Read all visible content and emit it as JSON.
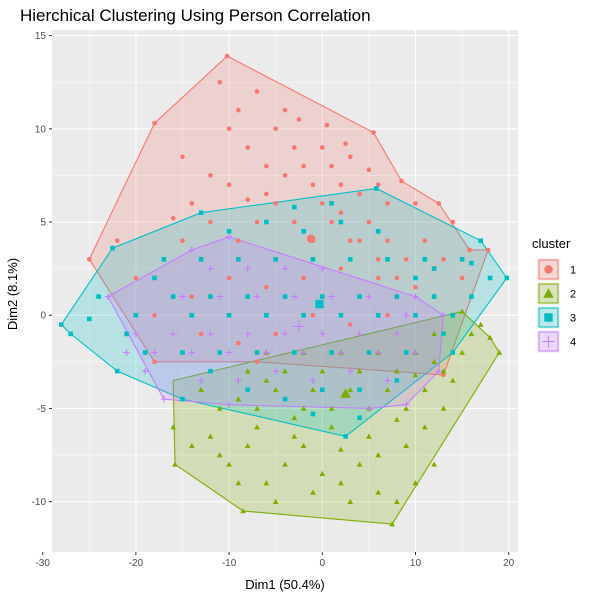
{
  "chart_data": {
    "type": "scatter",
    "title": "Hierchical Clustering Using Person Correlation",
    "xlabel": "Dim1 (50.4%)",
    "ylabel": "Dim2 (8.1%)",
    "xlim": [
      -29,
      21
    ],
    "ylim": [
      -12.7,
      15.3
    ],
    "xticks": [
      -30,
      -20,
      -10,
      0,
      10,
      20
    ],
    "yticks": [
      -10,
      -5,
      0,
      5,
      10,
      15
    ],
    "grid": true,
    "legend": {
      "title": "cluster",
      "position": "right"
    },
    "series": [
      {
        "name": "1",
        "shape": "circle",
        "color": "#F8766D",
        "hull": [
          [
            -10.2,
            13.9
          ],
          [
            5.5,
            9.8
          ],
          [
            8.5,
            7.2
          ],
          [
            12.5,
            6
          ],
          [
            15.8,
            3.5
          ],
          [
            17.8,
            3.5
          ],
          [
            13,
            -3.2
          ],
          [
            -7,
            -2.5
          ],
          [
            -18,
            -2.5
          ],
          [
            -25,
            3
          ],
          [
            -18,
            10.3
          ]
        ],
        "centroid": [
          -1.2,
          4.1
        ],
        "points": [
          [
            -10.2,
            13.9
          ],
          [
            -18,
            10.3
          ],
          [
            -15,
            8.5
          ],
          [
            -12,
            7.5
          ],
          [
            -14,
            6
          ],
          [
            -10,
            7
          ],
          [
            -8,
            9
          ],
          [
            -6,
            8
          ],
          [
            -9,
            11
          ],
          [
            -7,
            12
          ],
          [
            -5,
            10
          ],
          [
            -3,
            9
          ],
          [
            -2,
            8
          ],
          [
            -1,
            7
          ],
          [
            0,
            9
          ],
          [
            1,
            8
          ],
          [
            2,
            7
          ],
          [
            3,
            8.5
          ],
          [
            4,
            6.5
          ],
          [
            5.5,
            9.8
          ],
          [
            6,
            7
          ],
          [
            7,
            6
          ],
          [
            8.5,
            7.2
          ],
          [
            10,
            6
          ],
          [
            12.5,
            6
          ],
          [
            14,
            5
          ],
          [
            15.8,
            3.5
          ],
          [
            17.8,
            3.5
          ],
          [
            -22,
            4
          ],
          [
            -25,
            3
          ],
          [
            -20,
            2
          ],
          [
            -17,
            3
          ],
          [
            -15,
            4
          ],
          [
            -12,
            5
          ],
          [
            -9,
            4
          ],
          [
            -7,
            5
          ],
          [
            -5,
            6
          ],
          [
            -3,
            5
          ],
          [
            -1,
            4
          ],
          [
            1,
            5
          ],
          [
            3,
            4
          ],
          [
            5,
            5
          ],
          [
            7,
            4
          ],
          [
            9,
            3
          ],
          [
            11,
            4
          ],
          [
            13,
            3
          ],
          [
            15,
            2
          ],
          [
            -10,
            10
          ],
          [
            -4,
            11
          ],
          [
            -6,
            6.5
          ],
          [
            0,
            6
          ],
          [
            2,
            5.5
          ],
          [
            4,
            4
          ],
          [
            6,
            3
          ],
          [
            8,
            2
          ],
          [
            10,
            1.5
          ],
          [
            12,
            1
          ],
          [
            -18,
            0
          ],
          [
            -14,
            1
          ],
          [
            -10,
            2
          ],
          [
            -6,
            1.5
          ],
          [
            -2,
            2
          ],
          [
            2,
            2.5
          ],
          [
            6,
            2
          ],
          [
            -13,
            -1
          ],
          [
            -9,
            -1.5
          ],
          [
            -5,
            -1
          ],
          [
            -1,
            0
          ],
          [
            3,
            -0.5
          ],
          [
            7,
            0
          ],
          [
            -7,
            -2.5
          ],
          [
            -18,
            -2.5
          ],
          [
            13,
            -3.2
          ],
          [
            -11,
            12.5
          ],
          [
            -8,
            6.2
          ],
          [
            -16,
            5.2
          ],
          [
            -4,
            7.5
          ],
          [
            0.5,
            10.2
          ],
          [
            2.5,
            9.2
          ],
          [
            -2.5,
            10.5
          ],
          [
            5,
            7.8
          ]
        ]
      },
      {
        "name": "2",
        "shape": "triangle",
        "color": "#7CAE00",
        "hull": [
          [
            -16,
            -3.5
          ],
          [
            15,
            0.2
          ],
          [
            18,
            -1.2
          ],
          [
            19,
            -2
          ],
          [
            7.5,
            -11.2
          ],
          [
            -8.5,
            -10.5
          ],
          [
            -15.8,
            -8
          ]
        ],
        "centroid": [
          2.5,
          -4.2
        ],
        "points": [
          [
            7.5,
            -11.2
          ],
          [
            -8.5,
            -10.5
          ],
          [
            -15.8,
            -8
          ],
          [
            -16,
            -6
          ],
          [
            -14,
            -7
          ],
          [
            -12,
            -6.5
          ],
          [
            -10,
            -8
          ],
          [
            -8,
            -7
          ],
          [
            -6,
            -9
          ],
          [
            -4,
            -8
          ],
          [
            -2,
            -7
          ],
          [
            0,
            -8.5
          ],
          [
            2,
            -9
          ],
          [
            4,
            -8
          ],
          [
            6,
            -9.5
          ],
          [
            8,
            -10
          ],
          [
            10,
            -9
          ],
          [
            12,
            -8
          ],
          [
            -13,
            -4
          ],
          [
            -11,
            -5
          ],
          [
            -9,
            -4.5
          ],
          [
            -7,
            -5
          ],
          [
            -5,
            -4
          ],
          [
            -3,
            -5.5
          ],
          [
            -1,
            -4
          ],
          [
            1,
            -5
          ],
          [
            3,
            -4
          ],
          [
            5,
            -5
          ],
          [
            7,
            -4
          ],
          [
            9,
            -5
          ],
          [
            11,
            -4
          ],
          [
            13,
            -3
          ],
          [
            15,
            -2
          ],
          [
            18,
            -1.2
          ],
          [
            19,
            -2
          ],
          [
            16,
            -1
          ],
          [
            14,
            0
          ],
          [
            12,
            -1
          ],
          [
            10,
            -2
          ],
          [
            8,
            -3
          ],
          [
            6,
            -2
          ],
          [
            4,
            -3
          ],
          [
            2,
            -2
          ],
          [
            0,
            -3
          ],
          [
            -2,
            -2
          ],
          [
            -4,
            -3
          ],
          [
            -6,
            -2
          ],
          [
            -8,
            -3
          ],
          [
            15,
            0.2
          ],
          [
            17,
            -0.5
          ],
          [
            11,
            -6
          ],
          [
            9,
            -7
          ],
          [
            5,
            -6.5
          ],
          [
            1,
            -6
          ],
          [
            -3,
            -6.5
          ],
          [
            -7,
            -6
          ],
          [
            -11,
            -7.5
          ],
          [
            13,
            -5
          ],
          [
            3,
            -10
          ],
          [
            -1,
            -9.5
          ],
          [
            -5,
            -10
          ],
          [
            -9,
            -9
          ],
          [
            12,
            -2.5
          ],
          [
            14,
            -3.5
          ],
          [
            6,
            -7.5
          ],
          [
            2,
            -7.2
          ],
          [
            -2,
            -5
          ],
          [
            -6,
            -3.5
          ],
          [
            10,
            -3.2
          ],
          [
            8,
            -5.6
          ]
        ]
      },
      {
        "name": "3",
        "shape": "square",
        "color": "#00BFC4",
        "hull": [
          [
            -28,
            -0.5
          ],
          [
            -27,
            -1
          ],
          [
            -22,
            -3
          ],
          [
            -15,
            -4.5
          ],
          [
            2.5,
            -6.5
          ],
          [
            14,
            -2
          ],
          [
            19.8,
            2
          ],
          [
            17,
            4
          ],
          [
            5.8,
            6.8
          ],
          [
            -13,
            5.5
          ],
          [
            -22.5,
            3.6
          ]
        ],
        "centroid": [
          -0.3,
          0.6
        ],
        "points": [
          [
            -28,
            -0.5
          ],
          [
            -27,
            -1
          ],
          [
            -22,
            -3
          ],
          [
            -15,
            -4.5
          ],
          [
            2.5,
            -6.5
          ],
          [
            14,
            -2
          ],
          [
            19.8,
            2
          ],
          [
            17,
            4
          ],
          [
            5.8,
            6.8
          ],
          [
            -13,
            5.5
          ],
          [
            -22.5,
            3.6
          ],
          [
            -24,
            1
          ],
          [
            -20,
            0
          ],
          [
            -18,
            2
          ],
          [
            -16,
            1
          ],
          [
            -14,
            0
          ],
          [
            -12,
            1
          ],
          [
            -10,
            0
          ],
          [
            -8,
            1
          ],
          [
            -6,
            0
          ],
          [
            -4,
            1
          ],
          [
            -2,
            0
          ],
          [
            0,
            1
          ],
          [
            2,
            0
          ],
          [
            4,
            1
          ],
          [
            6,
            0
          ],
          [
            8,
            1
          ],
          [
            10,
            0
          ],
          [
            12,
            1
          ],
          [
            14,
            0
          ],
          [
            16,
            1
          ],
          [
            18,
            2
          ],
          [
            -19,
            -2
          ],
          [
            -15,
            -2
          ],
          [
            -11,
            -2
          ],
          [
            -7,
            -2
          ],
          [
            -3,
            -2
          ],
          [
            1,
            -2
          ],
          [
            5,
            -2
          ],
          [
            9,
            -2
          ],
          [
            13,
            -1
          ],
          [
            -17,
            3
          ],
          [
            -13,
            3
          ],
          [
            -9,
            3
          ],
          [
            -5,
            3
          ],
          [
            -1,
            3
          ],
          [
            3,
            3
          ],
          [
            7,
            3
          ],
          [
            11,
            3
          ],
          [
            15,
            3
          ],
          [
            -8,
            -4
          ],
          [
            -4,
            -4.5
          ],
          [
            0,
            -4
          ],
          [
            4,
            -4
          ],
          [
            8,
            -3.5
          ],
          [
            -10,
            4.5
          ],
          [
            -6,
            5
          ],
          [
            -2,
            4.5
          ],
          [
            2,
            5
          ],
          [
            6,
            4.5
          ],
          [
            -12,
            -3
          ],
          [
            10,
            2
          ],
          [
            -21,
            -1
          ],
          [
            -25,
            -0.2
          ],
          [
            16,
            2.8
          ],
          [
            12,
            2.5
          ],
          [
            -3,
            5.8
          ],
          [
            1,
            6
          ],
          [
            4,
            -5.5
          ],
          [
            -1,
            -5.3
          ]
        ]
      },
      {
        "name": "4",
        "shape": "plus",
        "color": "#C77CFF",
        "hull": [
          [
            -23,
            1
          ],
          [
            -17,
            -4.5
          ],
          [
            -10,
            -4.8
          ],
          [
            5,
            -5
          ],
          [
            9,
            -4.8
          ],
          [
            12.5,
            -3
          ],
          [
            13,
            0
          ],
          [
            10,
            1
          ],
          [
            -10,
            4.2
          ],
          [
            -14,
            3.5
          ]
        ],
        "centroid": [
          -2.5,
          -0.6
        ],
        "points": [
          [
            -23,
            1
          ],
          [
            -17,
            -4.5
          ],
          [
            -10,
            -4.8
          ],
          [
            5,
            -5
          ],
          [
            9,
            -4.8
          ],
          [
            12.5,
            -3
          ],
          [
            13,
            0
          ],
          [
            10,
            1
          ],
          [
            -10,
            4.2
          ],
          [
            -14,
            3.5
          ],
          [
            -20,
            -1
          ],
          [
            -18,
            -2
          ],
          [
            -16,
            -1
          ],
          [
            -14,
            -2
          ],
          [
            -12,
            -1
          ],
          [
            -10,
            -2
          ],
          [
            -8,
            -1
          ],
          [
            -6,
            -2
          ],
          [
            -4,
            -1
          ],
          [
            -2,
            -2
          ],
          [
            0,
            -1
          ],
          [
            2,
            -2
          ],
          [
            4,
            -1
          ],
          [
            6,
            -2
          ],
          [
            8,
            -1
          ],
          [
            10,
            -2
          ],
          [
            -15,
            1
          ],
          [
            -11,
            1
          ],
          [
            -7,
            1
          ],
          [
            -3,
            1
          ],
          [
            1,
            1
          ],
          [
            5,
            1
          ],
          [
            9,
            0
          ],
          [
            -12,
            2.5
          ],
          [
            -8,
            2.5
          ],
          [
            -4,
            2.5
          ],
          [
            0,
            2.5
          ],
          [
            -13,
            -3.5
          ],
          [
            -9,
            -3.5
          ],
          [
            -5,
            -3
          ],
          [
            -1,
            -3.5
          ],
          [
            3,
            -3
          ],
          [
            7,
            -3.5
          ],
          [
            -21,
            -2
          ],
          [
            -19,
            -3
          ]
        ]
      }
    ]
  }
}
